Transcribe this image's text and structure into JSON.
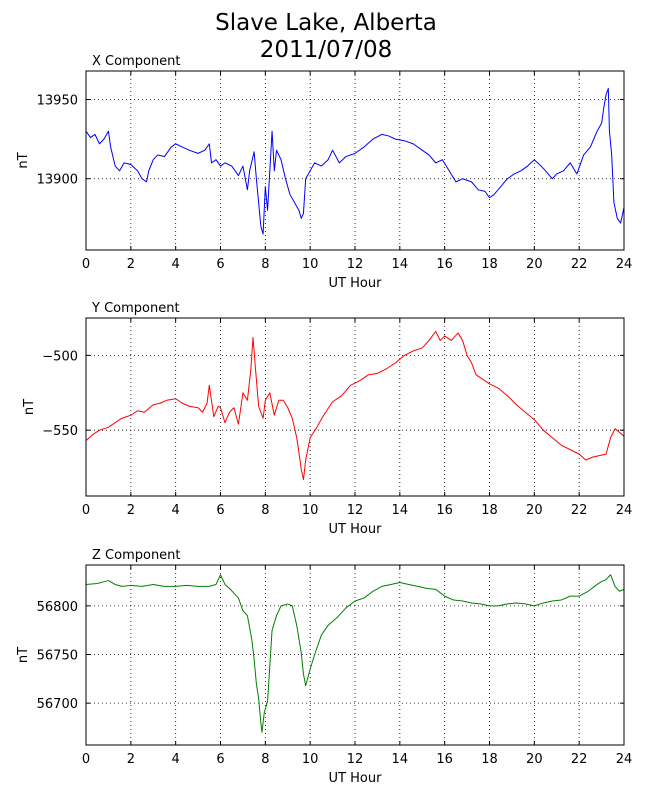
{
  "figure": {
    "title_line1": "Slave Lake, Alberta",
    "title_line2": "2011/07/08"
  },
  "chart_data": [
    {
      "type": "line",
      "title": "X Component",
      "xlabel": "UT Hour",
      "ylabel": "nT",
      "xlim": [
        0,
        24
      ],
      "ylim": [
        13855,
        13968
      ],
      "xticks": [
        0,
        2,
        4,
        6,
        8,
        10,
        12,
        14,
        16,
        18,
        20,
        22,
        24
      ],
      "yticks": [
        13900,
        13950
      ],
      "grid": true,
      "color": "#0000ff",
      "series": [
        {
          "x": [
            0,
            0.2,
            0.4,
            0.6,
            0.8,
            1.0,
            1.1,
            1.3,
            1.5,
            1.7,
            2.0,
            2.3,
            2.5,
            2.7,
            2.8,
            3.0,
            3.2,
            3.5,
            3.8,
            4.0,
            4.3,
            4.6,
            5.0,
            5.3,
            5.5,
            5.6,
            5.8,
            6.0,
            6.2,
            6.5,
            6.8,
            7.0,
            7.2,
            7.3,
            7.5,
            7.6,
            7.8,
            7.9,
            8.0,
            8.1,
            8.3,
            8.4,
            8.5,
            8.7,
            8.9,
            9.1,
            9.3,
            9.5,
            9.6,
            9.7,
            9.8,
            10.0,
            10.2,
            10.5,
            10.8,
            11.0,
            11.3,
            11.6,
            12.0,
            12.4,
            12.8,
            13.2,
            13.5,
            13.8,
            14.2,
            14.6,
            15.0,
            15.3,
            15.6,
            15.9,
            16.2,
            16.5,
            16.8,
            17.2,
            17.5,
            17.8,
            18.0,
            18.2,
            18.5,
            18.8,
            19.1,
            19.4,
            19.7,
            20.0,
            20.3,
            20.5,
            20.8,
            21.0,
            21.3,
            21.6,
            21.9,
            22.2,
            22.5,
            22.8,
            23.0,
            23.1,
            23.2,
            23.3,
            23.35,
            23.45,
            23.55,
            23.7,
            23.85,
            24.0
          ],
          "values": [
            13930,
            13926,
            13928,
            13922,
            13925,
            13930,
            13920,
            13908,
            13905,
            13910,
            13909,
            13905,
            13900,
            13898,
            13905,
            13912,
            13915,
            13914,
            13920,
            13922,
            13920,
            13918,
            13916,
            13918,
            13922,
            13910,
            13912,
            13908,
            13910,
            13908,
            13902,
            13908,
            13893,
            13905,
            13917,
            13900,
            13870,
            13865,
            13895,
            13880,
            13930,
            13905,
            13918,
            13912,
            13900,
            13890,
            13885,
            13880,
            13875,
            13878,
            13900,
            13905,
            13910,
            13908,
            13912,
            13918,
            13910,
            13914,
            13916,
            13920,
            13925,
            13928,
            13927,
            13925,
            13924,
            13922,
            13918,
            13915,
            13910,
            13912,
            13905,
            13898,
            13900,
            13898,
            13893,
            13892,
            13888,
            13890,
            13895,
            13900,
            13903,
            13905,
            13908,
            13912,
            13908,
            13905,
            13900,
            13903,
            13905,
            13910,
            13903,
            13915,
            13920,
            13930,
            13935,
            13945,
            13953,
            13957,
            13930,
            13915,
            13885,
            13875,
            13872,
            13882
          ]
        }
      ]
    },
    {
      "type": "line",
      "title": "Y Component",
      "xlabel": "UT Hour",
      "ylabel": "nT",
      "xlim": [
        0,
        24
      ],
      "ylim": [
        -594,
        -475
      ],
      "xticks": [
        0,
        2,
        4,
        6,
        8,
        10,
        12,
        14,
        16,
        18,
        20,
        22,
        24
      ],
      "yticks": [
        -500,
        -550
      ],
      "grid": true,
      "color": "#ff0000",
      "series": [
        {
          "x": [
            0,
            0.3,
            0.6,
            1.0,
            1.3,
            1.6,
            2.0,
            2.3,
            2.6,
            3.0,
            3.3,
            3.6,
            4.0,
            4.3,
            4.6,
            5.0,
            5.2,
            5.4,
            5.5,
            5.7,
            5.9,
            6.0,
            6.2,
            6.4,
            6.6,
            6.8,
            7.0,
            7.2,
            7.35,
            7.45,
            7.55,
            7.7,
            7.9,
            8.0,
            8.2,
            8.4,
            8.6,
            8.8,
            9.0,
            9.2,
            9.4,
            9.5,
            9.6,
            9.7,
            9.8,
            10.0,
            10.3,
            10.6,
            11.0,
            11.4,
            11.8,
            12.2,
            12.6,
            13.0,
            13.4,
            13.8,
            14.2,
            14.6,
            15.0,
            15.3,
            15.6,
            15.8,
            16.0,
            16.3,
            16.6,
            16.8,
            17.0,
            17.2,
            17.4,
            17.6,
            18.0,
            18.4,
            18.8,
            19.2,
            19.6,
            20.0,
            20.4,
            20.8,
            21.2,
            21.6,
            22.0,
            22.3,
            22.6,
            22.9,
            23.2,
            23.4,
            23.6,
            24.0
          ],
          "values": [
            -557,
            -553,
            -550,
            -548,
            -545,
            -542,
            -540,
            -537,
            -538,
            -533,
            -532,
            -530,
            -529,
            -532,
            -534,
            -535,
            -538,
            -532,
            -520,
            -541,
            -534,
            -535,
            -545,
            -538,
            -535,
            -546,
            -525,
            -530,
            -510,
            -488,
            -507,
            -534,
            -542,
            -530,
            -525,
            -540,
            -530,
            -530,
            -535,
            -542,
            -555,
            -565,
            -576,
            -583,
            -570,
            -555,
            -548,
            -540,
            -531,
            -527,
            -520,
            -517,
            -513,
            -512,
            -509,
            -505,
            -500,
            -497,
            -495,
            -490,
            -484,
            -490,
            -487,
            -490,
            -485,
            -490,
            -500,
            -505,
            -513,
            -515,
            -519,
            -522,
            -527,
            -533,
            -538,
            -543,
            -550,
            -555,
            -560,
            -563,
            -566,
            -570,
            -568,
            -567,
            -566,
            -555,
            -549,
            -554
          ]
        }
      ]
    },
    {
      "type": "line",
      "title": "Z Component",
      "xlabel": "UT Hour",
      "ylabel": "nT",
      "xlim": [
        0,
        24
      ],
      "ylim": [
        56657,
        56842
      ],
      "xticks": [
        0,
        2,
        4,
        6,
        8,
        10,
        12,
        14,
        16,
        18,
        20,
        22,
        24
      ],
      "yticks": [
        56700,
        56750,
        56800
      ],
      "grid": true,
      "color": "#008000",
      "series": [
        {
          "x": [
            0,
            0.5,
            1.0,
            1.3,
            1.6,
            2.0,
            2.5,
            3.0,
            3.5,
            4.0,
            4.5,
            5.0,
            5.5,
            5.8,
            6.0,
            6.2,
            6.4,
            6.6,
            6.8,
            7.0,
            7.2,
            7.4,
            7.5,
            7.6,
            7.7,
            7.8,
            7.85,
            7.95,
            8.1,
            8.3,
            8.5,
            8.7,
            9.0,
            9.2,
            9.4,
            9.6,
            9.7,
            9.8,
            10.0,
            10.2,
            10.5,
            10.8,
            11.2,
            11.6,
            12.0,
            12.4,
            12.8,
            13.2,
            13.6,
            14.0,
            14.4,
            14.8,
            15.2,
            15.6,
            16.0,
            16.4,
            16.8,
            17.2,
            17.6,
            18.0,
            18.4,
            18.8,
            19.2,
            19.6,
            20.0,
            20.4,
            20.8,
            21.2,
            21.6,
            22.0,
            22.4,
            22.8,
            23.0,
            23.2,
            23.4,
            23.6,
            23.8,
            24.0
          ],
          "values": [
            56822,
            56823,
            56826,
            56822,
            56820,
            56821,
            56820,
            56822,
            56820,
            56820,
            56821,
            56820,
            56820,
            56822,
            56832,
            56822,
            56818,
            56813,
            56808,
            56795,
            56790,
            56765,
            56745,
            56720,
            56705,
            56680,
            56670,
            56690,
            56702,
            56775,
            56790,
            56800,
            56802,
            56800,
            56780,
            56752,
            56730,
            56718,
            56735,
            56750,
            56770,
            56780,
            56788,
            56798,
            56805,
            56808,
            56815,
            56820,
            56822,
            56824,
            56822,
            56820,
            56818,
            56817,
            56810,
            56806,
            56805,
            56803,
            56802,
            56800,
            56800,
            56802,
            56803,
            56802,
            56800,
            56803,
            56805,
            56806,
            56810,
            56810,
            56815,
            56822,
            56825,
            56827,
            56832,
            56820,
            56815,
            56817
          ]
        }
      ]
    }
  ]
}
